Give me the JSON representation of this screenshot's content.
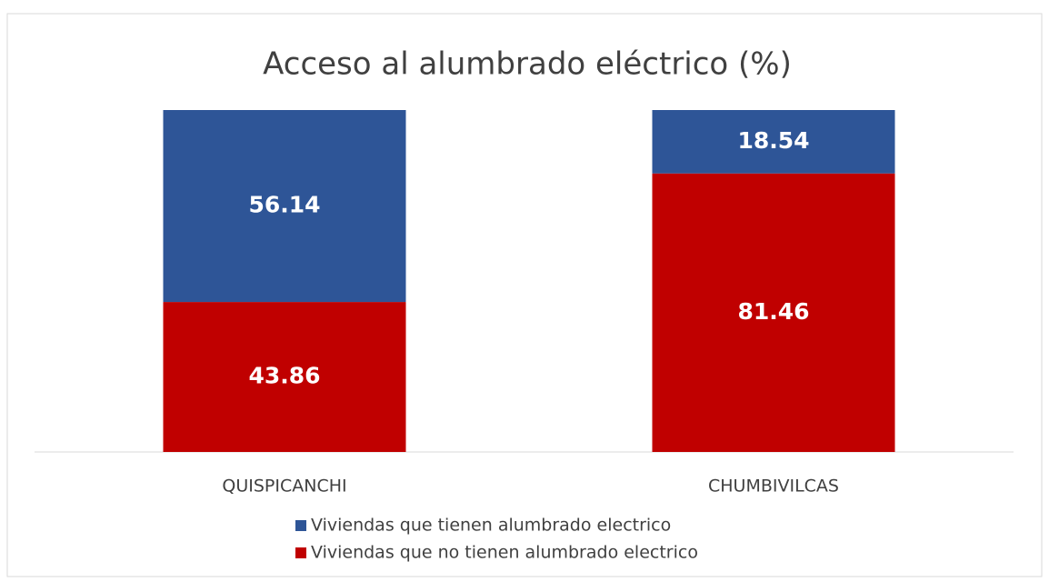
{
  "chart_data": {
    "type": "stacked_bar",
    "title": "Acceso al alumbrado eléctrico (%)",
    "categories": [
      "QUISPICANCHI",
      "CHUMBIVILCAS"
    ],
    "series": [
      {
        "name": "Viviendas que tienen alumbrado electrico",
        "color": "#2e5597",
        "values": [
          56.14,
          18.54
        ]
      },
      {
        "name": "Viviendas que no tienen alumbrado electrico",
        "color": "#c00000",
        "values": [
          43.86,
          81.46
        ]
      }
    ]
  }
}
